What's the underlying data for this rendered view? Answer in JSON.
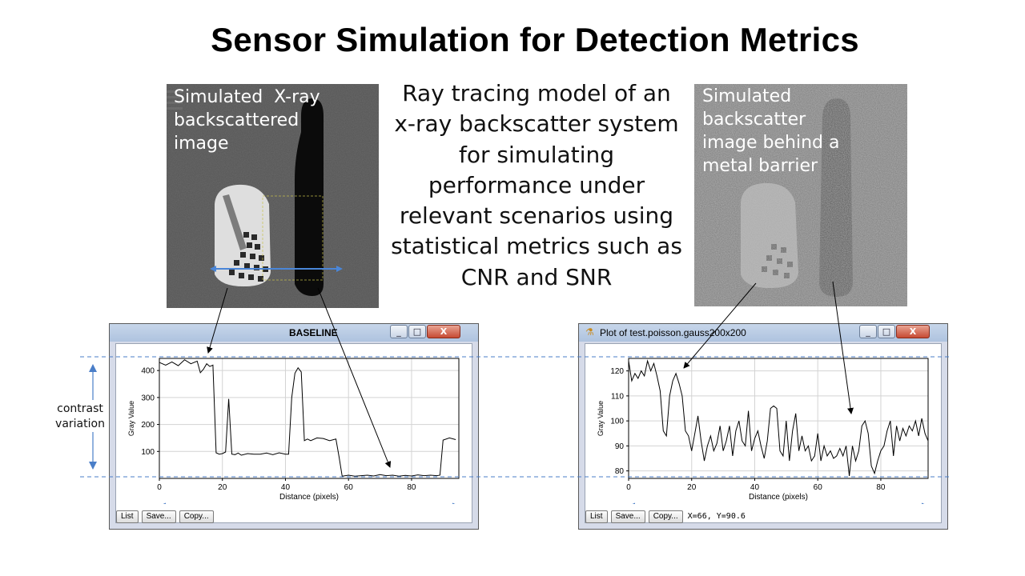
{
  "slide": {
    "title": "Sensor Simulation for Detection Metrics",
    "center_text": "Ray tracing model of an x-ray backscatter system for simulating performance under relevant scenarios using statistical metrics such as CNR and SNR",
    "side_label": "contrast variation"
  },
  "left_image": {
    "caption": "Simulated  X-ray backscattered image"
  },
  "right_image": {
    "caption": "Simulated backscatter image behind a metal barrier"
  },
  "left_window": {
    "title": "BASELINE",
    "buttons": {
      "minimize": "_",
      "maximize": "□",
      "close": "X"
    },
    "footer_buttons": [
      "List",
      "Save...",
      "Copy..."
    ],
    "chart_data": {
      "type": "line",
      "xlabel": "Distance (pixels)",
      "ylabel": "Gray Value",
      "xlim": [
        0,
        95
      ],
      "ylim": [
        0,
        445
      ],
      "x_ticks": [
        0,
        20,
        40,
        60,
        80
      ],
      "y_ticks": [
        100,
        200,
        300,
        400
      ],
      "grid": true,
      "series": [
        {
          "x": [
            0,
            2,
            4,
            6,
            8,
            10,
            12,
            13,
            14,
            15,
            16,
            17,
            18,
            19,
            20,
            21,
            22,
            23,
            24,
            25,
            26,
            28,
            30,
            32,
            34,
            36,
            38,
            40,
            41,
            42,
            43,
            44,
            45,
            46,
            47,
            48,
            50,
            52,
            54,
            56,
            57,
            58,
            59,
            60,
            62,
            64,
            66,
            68,
            70,
            72,
            74,
            76,
            78,
            80,
            82,
            84,
            86,
            88,
            89,
            90,
            92,
            94
          ],
          "y": [
            430,
            420,
            432,
            418,
            440,
            425,
            435,
            392,
            405,
            425,
            415,
            420,
            95,
            90,
            92,
            98,
            295,
            90,
            88,
            94,
            86,
            92,
            90,
            90,
            94,
            88,
            95,
            90,
            90,
            300,
            390,
            410,
            395,
            140,
            146,
            140,
            150,
            148,
            140,
            146,
            80,
            8,
            10,
            12,
            8,
            10,
            12,
            9,
            14,
            10,
            12,
            8,
            11,
            9,
            13,
            10,
            12,
            10,
            12,
            142,
            150,
            144
          ]
        }
      ]
    }
  },
  "right_window": {
    "title": "Plot of test.poisson.gauss200x200",
    "buttons": {
      "minimize": "_",
      "maximize": "□",
      "close": "X"
    },
    "footer_buttons": [
      "List",
      "Save...",
      "Copy..."
    ],
    "coord_text": "X=66, Y=90.6",
    "chart_data": {
      "type": "line",
      "xlabel": "Distance (pixels)",
      "ylabel": "Gray Value",
      "xlim": [
        0,
        95
      ],
      "ylim": [
        77,
        125
      ],
      "x_ticks": [
        0,
        20,
        40,
        60,
        80
      ],
      "y_ticks": [
        80,
        90,
        100,
        110,
        120
      ],
      "grid": true,
      "series": [
        {
          "x": [
            0,
            1,
            2,
            3,
            4,
            5,
            6,
            7,
            8,
            9,
            10,
            11,
            12,
            13,
            14,
            15,
            16,
            17,
            18,
            19,
            20,
            21,
            22,
            23,
            24,
            25,
            26,
            27,
            28,
            29,
            30,
            31,
            32,
            33,
            34,
            35,
            36,
            37,
            38,
            39,
            40,
            41,
            42,
            43,
            44,
            45,
            46,
            47,
            48,
            49,
            50,
            51,
            52,
            53,
            54,
            55,
            56,
            57,
            58,
            59,
            60,
            61,
            62,
            63,
            64,
            65,
            66,
            67,
            68,
            69,
            70,
            71,
            72,
            73,
            74,
            75,
            76,
            77,
            78,
            79,
            80,
            81,
            82,
            83,
            84,
            85,
            86,
            87,
            88,
            89,
            90,
            91,
            92,
            93,
            94,
            95
          ],
          "y": [
            124,
            116,
            119,
            117,
            120,
            118,
            124,
            120,
            123,
            118,
            112,
            96,
            94,
            110,
            116,
            119,
            115,
            110,
            96,
            94,
            88,
            95,
            102,
            92,
            84,
            90,
            94,
            88,
            91,
            98,
            88,
            92,
            98,
            86,
            96,
            100,
            92,
            90,
            104,
            88,
            93,
            96,
            90,
            85,
            92,
            105,
            106,
            105,
            88,
            86,
            100,
            84,
            96,
            103,
            88,
            94,
            88,
            90,
            84,
            86,
            95,
            84,
            90,
            86,
            88,
            85,
            86,
            89,
            86,
            90,
            78,
            90,
            84,
            88,
            98,
            100,
            95,
            82,
            79,
            84,
            88,
            90,
            96,
            100,
            86,
            98,
            92,
            97,
            94,
            98,
            96,
            100,
            94,
            101,
            95,
            92
          ]
        }
      ]
    }
  }
}
